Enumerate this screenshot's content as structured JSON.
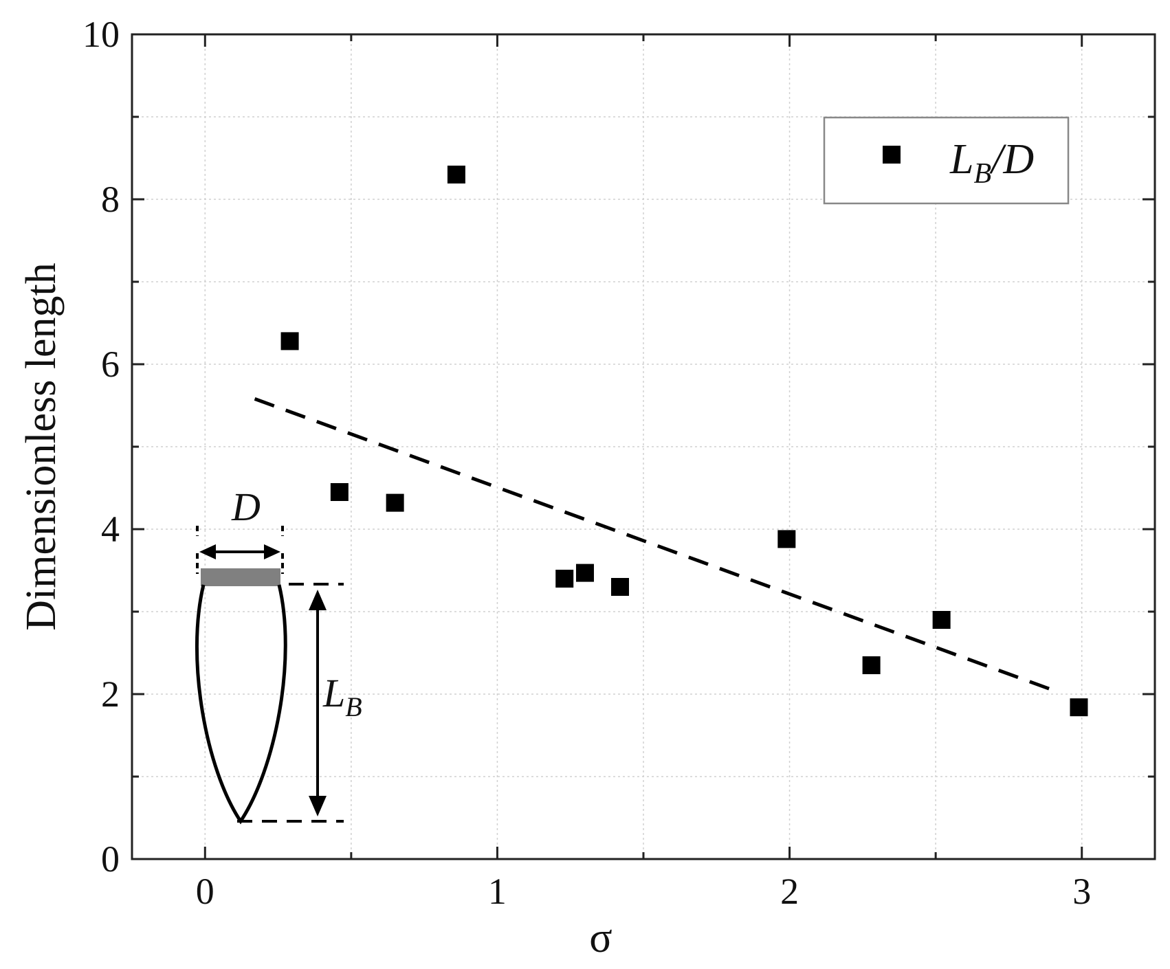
{
  "chart_data": {
    "type": "scatter",
    "xlabel": "σ",
    "ylabel": "Dimensionless length",
    "xlim": [
      -0.25,
      3.25
    ],
    "ylim": [
      0,
      10
    ],
    "xticks": [
      "0",
      "1",
      "2",
      "3"
    ],
    "yticks": [
      "0",
      "2",
      "4",
      "6",
      "8",
      "10"
    ],
    "grid": true,
    "legend_position": "top-right",
    "series": [
      {
        "name": "L_B/D",
        "legend_main": "L",
        "legend_sub": "B",
        "legend_tail": "/D",
        "marker": "square",
        "color": "#000000",
        "points": [
          {
            "x": 0.29,
            "y": 6.28
          },
          {
            "x": 0.46,
            "y": 4.45
          },
          {
            "x": 0.65,
            "y": 4.32
          },
          {
            "x": 0.86,
            "y": 8.3
          },
          {
            "x": 1.23,
            "y": 3.4
          },
          {
            "x": 1.3,
            "y": 3.47
          },
          {
            "x": 1.42,
            "y": 3.3
          },
          {
            "x": 1.99,
            "y": 3.88
          },
          {
            "x": 2.28,
            "y": 2.35
          },
          {
            "x": 2.52,
            "y": 2.9
          },
          {
            "x": 2.99,
            "y": 1.84
          }
        ]
      }
    ],
    "trendline": {
      "style": "dashed",
      "color": "#000000",
      "x": [
        0.17,
        2.9
      ],
      "y": [
        5.58,
        2.05
      ]
    },
    "inset": {
      "diameter_label": "D",
      "length_label_main": "L",
      "length_label_sub": "B"
    }
  }
}
